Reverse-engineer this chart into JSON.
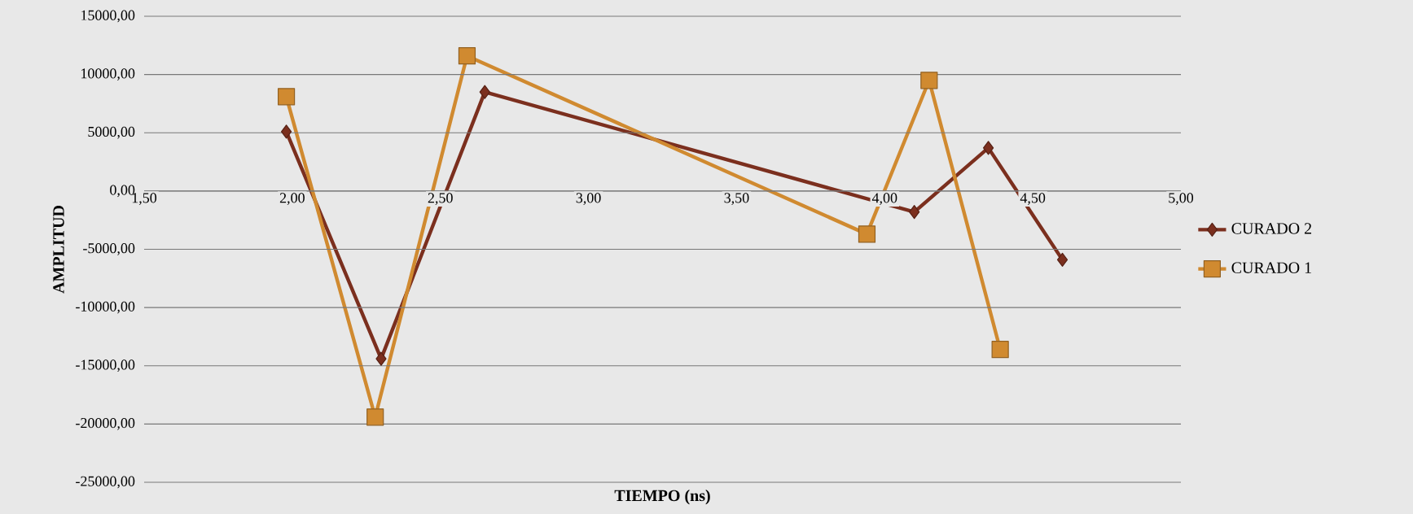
{
  "chart_data": {
    "type": "line",
    "xlabel": "TIEMPO (ns)",
    "ylabel": "AMPLITUD",
    "xlim": [
      1.5,
      5.0
    ],
    "xticks": [
      {
        "value": 1.5,
        "label": "1,50"
      },
      {
        "value": 2.0,
        "label": "2,00"
      },
      {
        "value": 2.5,
        "label": "2,50"
      },
      {
        "value": 3.0,
        "label": "3,00"
      },
      {
        "value": 3.5,
        "label": "3,50"
      },
      {
        "value": 4.0,
        "label": "4,00"
      },
      {
        "value": 4.5,
        "label": "4,50"
      },
      {
        "value": 5.0,
        "label": "5,00"
      }
    ],
    "ylim": [
      -25000,
      15000
    ],
    "yticks": [
      {
        "value": -25000,
        "label": "-25000,00"
      },
      {
        "value": -20000,
        "label": "-20000,00"
      },
      {
        "value": -15000,
        "label": "-15000,00"
      },
      {
        "value": -10000,
        "label": "-10000,00"
      },
      {
        "value": -5000,
        "label": "-5000,00"
      },
      {
        "value": 0,
        "label": "0,00"
      },
      {
        "value": 5000,
        "label": "5000,00"
      },
      {
        "value": 10000,
        "label": "10000,00"
      },
      {
        "value": 15000,
        "label": "15000,00"
      }
    ],
    "grid": "y",
    "legend": "right",
    "series": [
      {
        "name": "CURADO 2",
        "color": "#7b2f1e",
        "marker": "diamond",
        "x": [
          1.98,
          2.3,
          2.65,
          4.1,
          4.35,
          4.6
        ],
        "values": [
          5100,
          -14400,
          8500,
          -1800,
          3700,
          -5900
        ]
      },
      {
        "name": "CURADO 1",
        "color": "#d08a30",
        "marker": "square",
        "x": [
          1.98,
          2.28,
          2.59,
          3.94,
          4.15,
          4.39
        ],
        "values": [
          8100,
          -19400,
          11600,
          -3700,
          9500,
          -13600
        ]
      }
    ]
  }
}
